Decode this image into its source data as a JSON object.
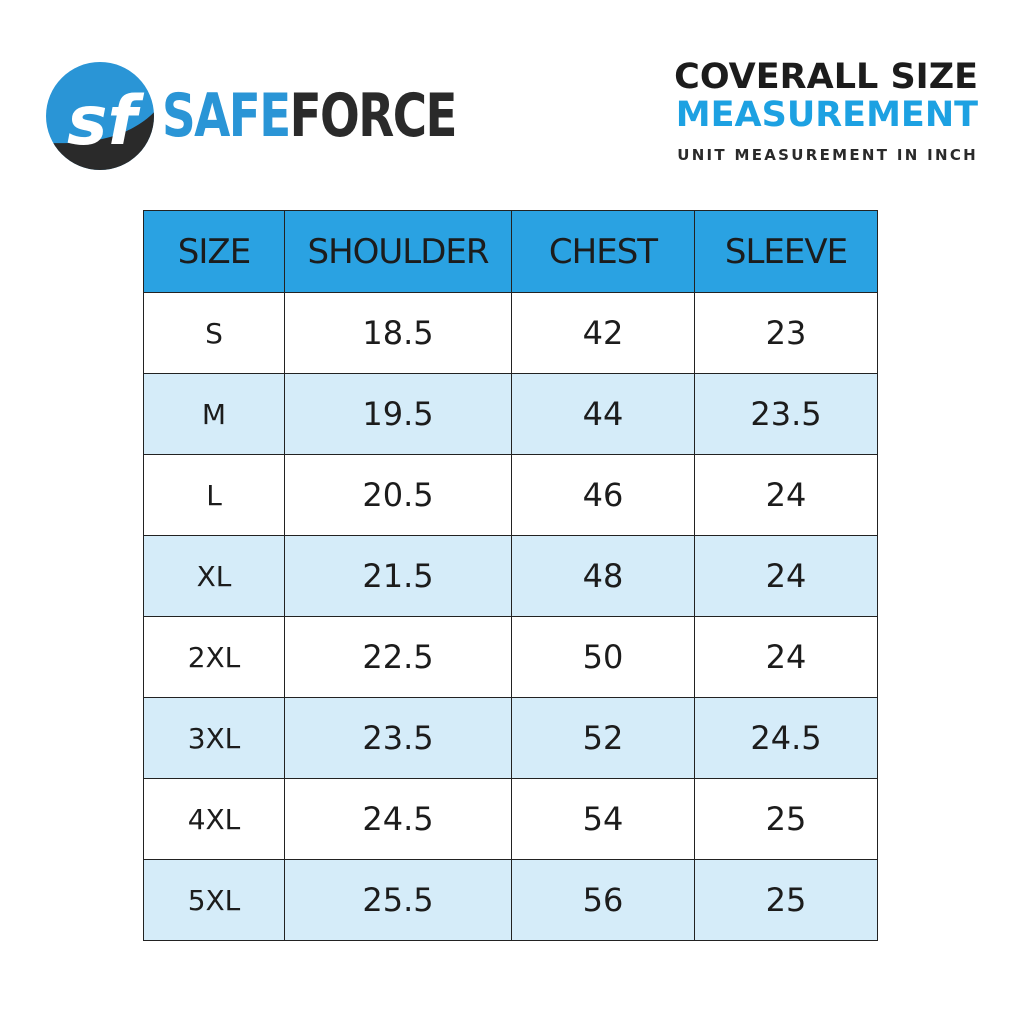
{
  "brand": {
    "monogram": "sf",
    "name_part1": "SAFE",
    "name_part2": "FORCE",
    "colors": {
      "blue": "#2a95d6",
      "dark": "#2a2a2a"
    }
  },
  "heading": {
    "line1": "COVERALL SIZE",
    "line2": "MEASUREMENT",
    "subtitle": "UNIT MEASUREMENT IN INCH"
  },
  "table": {
    "header_color": "#2aa2e2",
    "stripe_color": "#d5ecf9",
    "columns": [
      "SIZE",
      "SHOULDER",
      "CHEST",
      "SLEEVE"
    ],
    "rows": [
      [
        "S",
        "18.5",
        "42",
        "23"
      ],
      [
        "M",
        "19.5",
        "44",
        "23.5"
      ],
      [
        "L",
        "20.5",
        "46",
        "24"
      ],
      [
        "XL",
        "21.5",
        "48",
        "24"
      ],
      [
        "2XL",
        "22.5",
        "50",
        "24"
      ],
      [
        "3XL",
        "23.5",
        "52",
        "24.5"
      ],
      [
        "4XL",
        "24.5",
        "54",
        "25"
      ],
      [
        "5XL",
        "25.5",
        "56",
        "25"
      ]
    ]
  }
}
